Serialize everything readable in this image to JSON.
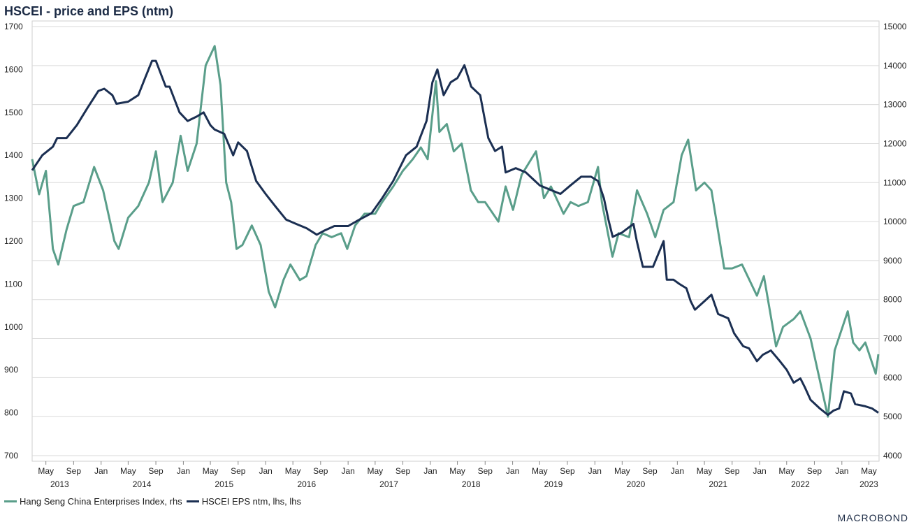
{
  "title": "HSCEI - price and EPS (ntm)",
  "logo": "MACROBOND",
  "colors": {
    "price": "#5a9e8a",
    "eps": "#1b2f52",
    "grid": "#dadada"
  },
  "chart_data": {
    "type": "line",
    "x_range": [
      "2013-03-01",
      "2023-06-15"
    ],
    "left_axis": {
      "ticks": [
        700,
        800,
        900,
        1000,
        1100,
        1200,
        1300,
        1400,
        1500,
        1600,
        1700
      ],
      "range": [
        700,
        1700
      ]
    },
    "right_axis": {
      "ticks": [
        4000,
        5000,
        6000,
        7000,
        8000,
        9000,
        10000,
        11000,
        12000,
        13000,
        14000,
        15000
      ],
      "range": [
        4000,
        15000
      ]
    },
    "x_ticks": [
      {
        "date": "2013-05-01",
        "label": "May"
      },
      {
        "date": "2013-09-01",
        "label": "Sep"
      },
      {
        "date": "2014-01-01",
        "label": "Jan"
      },
      {
        "date": "2014-05-01",
        "label": "May"
      },
      {
        "date": "2014-09-01",
        "label": "Sep"
      },
      {
        "date": "2015-01-01",
        "label": "Jan"
      },
      {
        "date": "2015-05-01",
        "label": "May"
      },
      {
        "date": "2015-09-01",
        "label": "Sep"
      },
      {
        "date": "2016-01-01",
        "label": "Jan"
      },
      {
        "date": "2016-05-01",
        "label": "May"
      },
      {
        "date": "2016-09-01",
        "label": "Sep"
      },
      {
        "date": "2017-01-01",
        "label": "Jan"
      },
      {
        "date": "2017-05-01",
        "label": "May"
      },
      {
        "date": "2017-09-01",
        "label": "Sep"
      },
      {
        "date": "2018-01-01",
        "label": "Jan"
      },
      {
        "date": "2018-05-01",
        "label": "May"
      },
      {
        "date": "2018-09-01",
        "label": "Sep"
      },
      {
        "date": "2019-01-01",
        "label": "Jan"
      },
      {
        "date": "2019-05-01",
        "label": "May"
      },
      {
        "date": "2019-09-01",
        "label": "Sep"
      },
      {
        "date": "2020-01-01",
        "label": "Jan"
      },
      {
        "date": "2020-05-01",
        "label": "May"
      },
      {
        "date": "2020-09-01",
        "label": "Sep"
      },
      {
        "date": "2021-01-01",
        "label": "Jan"
      },
      {
        "date": "2021-05-01",
        "label": "May"
      },
      {
        "date": "2021-09-01",
        "label": "Sep"
      },
      {
        "date": "2022-01-01",
        "label": "Jan"
      },
      {
        "date": "2022-05-01",
        "label": "May"
      },
      {
        "date": "2022-09-01",
        "label": "Sep"
      },
      {
        "date": "2023-01-01",
        "label": "Jan"
      },
      {
        "date": "2023-05-01",
        "label": "May"
      }
    ],
    "year_labels": [
      {
        "date": "2013-07-01",
        "label": "2013"
      },
      {
        "date": "2014-07-01",
        "label": "2014"
      },
      {
        "date": "2015-07-01",
        "label": "2015"
      },
      {
        "date": "2016-07-01",
        "label": "2016"
      },
      {
        "date": "2017-07-01",
        "label": "2017"
      },
      {
        "date": "2018-07-01",
        "label": "2018"
      },
      {
        "date": "2019-07-01",
        "label": "2019"
      },
      {
        "date": "2020-07-01",
        "label": "2020"
      },
      {
        "date": "2021-07-01",
        "label": "2021"
      },
      {
        "date": "2022-07-01",
        "label": "2022"
      },
      {
        "date": "2023-05-01",
        "label": "2023"
      }
    ],
    "series": [
      {
        "name": "Hang Seng China Enterprises Index, rhs",
        "axis": "right",
        "points": [
          [
            "2013-03-01",
            11600
          ],
          [
            "2013-04-01",
            10700
          ],
          [
            "2013-05-01",
            11300
          ],
          [
            "2013-06-01",
            9300
          ],
          [
            "2013-06-25",
            8900
          ],
          [
            "2013-08-01",
            9800
          ],
          [
            "2013-09-01",
            10400
          ],
          [
            "2013-10-15",
            10500
          ],
          [
            "2013-12-01",
            11400
          ],
          [
            "2014-01-10",
            10800
          ],
          [
            "2014-03-01",
            9500
          ],
          [
            "2014-03-20",
            9300
          ],
          [
            "2014-05-01",
            10100
          ],
          [
            "2014-06-15",
            10400
          ],
          [
            "2014-08-01",
            11000
          ],
          [
            "2014-09-01",
            11800
          ],
          [
            "2014-10-01",
            10500
          ],
          [
            "2014-11-15",
            11000
          ],
          [
            "2014-12-20",
            12200
          ],
          [
            "2015-01-20",
            11300
          ],
          [
            "2015-03-01",
            12000
          ],
          [
            "2015-04-10",
            14000
          ],
          [
            "2015-05-20",
            14500
          ],
          [
            "2015-06-15",
            13500
          ],
          [
            "2015-07-10",
            11000
          ],
          [
            "2015-08-01",
            10500
          ],
          [
            "2015-08-25",
            9300
          ],
          [
            "2015-09-20",
            9400
          ],
          [
            "2015-11-01",
            9900
          ],
          [
            "2015-12-10",
            9400
          ],
          [
            "2016-01-15",
            8200
          ],
          [
            "2016-02-12",
            7800
          ],
          [
            "2016-03-20",
            8500
          ],
          [
            "2016-04-20",
            8900
          ],
          [
            "2016-06-01",
            8500
          ],
          [
            "2016-06-30",
            8600
          ],
          [
            "2016-08-10",
            9400
          ],
          [
            "2016-09-10",
            9700
          ],
          [
            "2016-10-20",
            9600
          ],
          [
            "2016-12-01",
            9700
          ],
          [
            "2016-12-28",
            9300
          ],
          [
            "2017-02-01",
            9900
          ],
          [
            "2017-03-15",
            10200
          ],
          [
            "2017-05-01",
            10200
          ],
          [
            "2017-06-01",
            10500
          ],
          [
            "2017-07-20",
            10900
          ],
          [
            "2017-09-01",
            11300
          ],
          [
            "2017-10-15",
            11600
          ],
          [
            "2017-11-20",
            11900
          ],
          [
            "2017-12-20",
            11600
          ],
          [
            "2018-01-26",
            13600
          ],
          [
            "2018-02-10",
            12300
          ],
          [
            "2018-03-15",
            12500
          ],
          [
            "2018-04-15",
            11800
          ],
          [
            "2018-05-20",
            12000
          ],
          [
            "2018-06-30",
            10800
          ],
          [
            "2018-08-01",
            10500
          ],
          [
            "2018-09-01",
            10500
          ],
          [
            "2018-10-30",
            10000
          ],
          [
            "2018-12-01",
            10900
          ],
          [
            "2019-01-03",
            10300
          ],
          [
            "2019-02-10",
            11200
          ],
          [
            "2019-04-15",
            11800
          ],
          [
            "2019-05-20",
            10600
          ],
          [
            "2019-06-20",
            10900
          ],
          [
            "2019-08-15",
            10200
          ],
          [
            "2019-09-15",
            10500
          ],
          [
            "2019-10-20",
            10400
          ],
          [
            "2019-12-01",
            10500
          ],
          [
            "2020-01-15",
            11400
          ],
          [
            "2020-02-01",
            10500
          ],
          [
            "2020-03-19",
            9100
          ],
          [
            "2020-04-15",
            9700
          ],
          [
            "2020-06-01",
            9600
          ],
          [
            "2020-07-06",
            10800
          ],
          [
            "2020-08-20",
            10200
          ],
          [
            "2020-09-25",
            9600
          ],
          [
            "2020-11-01",
            10300
          ],
          [
            "2020-12-15",
            10500
          ],
          [
            "2021-01-20",
            11700
          ],
          [
            "2021-02-18",
            12100
          ],
          [
            "2021-03-25",
            10800
          ],
          [
            "2021-05-01",
            11000
          ],
          [
            "2021-06-01",
            10800
          ],
          [
            "2021-07-28",
            8800
          ],
          [
            "2021-09-01",
            8800
          ],
          [
            "2021-10-15",
            8900
          ],
          [
            "2021-12-20",
            8100
          ],
          [
            "2022-01-20",
            8600
          ],
          [
            "2022-03-15",
            6800
          ],
          [
            "2022-04-15",
            7300
          ],
          [
            "2022-06-01",
            7500
          ],
          [
            "2022-07-01",
            7700
          ],
          [
            "2022-08-15",
            7000
          ],
          [
            "2022-10-31",
            5000
          ],
          [
            "2022-11-30",
            6700
          ],
          [
            "2023-01-27",
            7700
          ],
          [
            "2023-02-20",
            6900
          ],
          [
            "2023-03-20",
            6700
          ],
          [
            "2023-04-15",
            6900
          ],
          [
            "2023-05-31",
            6100
          ],
          [
            "2023-06-12",
            6600
          ]
        ]
      },
      {
        "name": "HSCEI EPS ntm, lhs, lhs",
        "axis": "left",
        "points": [
          [
            "2013-03-01",
            1365
          ],
          [
            "2013-04-15",
            1400
          ],
          [
            "2013-06-01",
            1420
          ],
          [
            "2013-06-20",
            1440
          ],
          [
            "2013-08-01",
            1440
          ],
          [
            "2013-09-15",
            1470
          ],
          [
            "2013-11-01",
            1510
          ],
          [
            "2013-12-20",
            1550
          ],
          [
            "2014-01-15",
            1555
          ],
          [
            "2014-02-20",
            1540
          ],
          [
            "2014-03-10",
            1520
          ],
          [
            "2014-05-01",
            1525
          ],
          [
            "2014-06-15",
            1540
          ],
          [
            "2014-07-15",
            1580
          ],
          [
            "2014-08-15",
            1620
          ],
          [
            "2014-09-01",
            1620
          ],
          [
            "2014-10-15",
            1560
          ],
          [
            "2014-11-01",
            1560
          ],
          [
            "2014-12-15",
            1500
          ],
          [
            "2015-01-20",
            1480
          ],
          [
            "2015-03-01",
            1490
          ],
          [
            "2015-04-01",
            1500
          ],
          [
            "2015-05-01",
            1470
          ],
          [
            "2015-05-20",
            1460
          ],
          [
            "2015-07-01",
            1450
          ],
          [
            "2015-08-10",
            1400
          ],
          [
            "2015-09-01",
            1430
          ],
          [
            "2015-10-10",
            1410
          ],
          [
            "2015-11-20",
            1340
          ],
          [
            "2016-01-01",
            1310
          ],
          [
            "2016-02-15",
            1280
          ],
          [
            "2016-04-01",
            1250
          ],
          [
            "2016-05-15",
            1240
          ],
          [
            "2016-07-01",
            1230
          ],
          [
            "2016-08-15",
            1215
          ],
          [
            "2016-09-20",
            1225
          ],
          [
            "2016-11-01",
            1235
          ],
          [
            "2017-01-01",
            1235
          ],
          [
            "2017-02-20",
            1250
          ],
          [
            "2017-04-15",
            1265
          ],
          [
            "2017-06-01",
            1300
          ],
          [
            "2017-07-20",
            1340
          ],
          [
            "2017-09-15",
            1400
          ],
          [
            "2017-11-01",
            1420
          ],
          [
            "2017-12-15",
            1480
          ],
          [
            "2018-01-10",
            1570
          ],
          [
            "2018-02-01",
            1600
          ],
          [
            "2018-03-01",
            1540
          ],
          [
            "2018-04-01",
            1570
          ],
          [
            "2018-05-01",
            1580
          ],
          [
            "2018-06-01",
            1610
          ],
          [
            "2018-07-01",
            1560
          ],
          [
            "2018-08-10",
            1540
          ],
          [
            "2018-09-15",
            1440
          ],
          [
            "2018-10-15",
            1410
          ],
          [
            "2018-11-15",
            1420
          ],
          [
            "2018-12-01",
            1360
          ],
          [
            "2019-01-15",
            1370
          ],
          [
            "2019-03-01",
            1360
          ],
          [
            "2019-05-01",
            1330
          ],
          [
            "2019-06-15",
            1320
          ],
          [
            "2019-08-01",
            1310
          ],
          [
            "2019-09-15",
            1330
          ],
          [
            "2019-11-01",
            1350
          ],
          [
            "2019-12-15",
            1350
          ],
          [
            "2020-01-15",
            1340
          ],
          [
            "2020-02-10",
            1300
          ],
          [
            "2020-03-01",
            1250
          ],
          [
            "2020-03-20",
            1210
          ],
          [
            "2020-05-01",
            1220
          ],
          [
            "2020-06-20",
            1240
          ],
          [
            "2020-07-05",
            1200
          ],
          [
            "2020-08-01",
            1140
          ],
          [
            "2020-09-15",
            1140
          ],
          [
            "2020-11-01",
            1200
          ],
          [
            "2020-11-15",
            1110
          ],
          [
            "2020-12-15",
            1110
          ],
          [
            "2021-01-10",
            1100
          ],
          [
            "2021-02-10",
            1090
          ],
          [
            "2021-03-01",
            1060
          ],
          [
            "2021-03-20",
            1040
          ],
          [
            "2021-05-01",
            1060
          ],
          [
            "2021-06-01",
            1075
          ],
          [
            "2021-07-01",
            1030
          ],
          [
            "2021-08-15",
            1020
          ],
          [
            "2021-09-10",
            985
          ],
          [
            "2021-10-20",
            955
          ],
          [
            "2021-11-15",
            950
          ],
          [
            "2021-12-20",
            920
          ],
          [
            "2022-01-15",
            935
          ],
          [
            "2022-02-20",
            945
          ],
          [
            "2022-04-01",
            920
          ],
          [
            "2022-05-01",
            900
          ],
          [
            "2022-06-01",
            870
          ],
          [
            "2022-07-01",
            880
          ],
          [
            "2022-07-20",
            860
          ],
          [
            "2022-08-15",
            830
          ],
          [
            "2022-09-25",
            810
          ],
          [
            "2022-10-31",
            795
          ],
          [
            "2022-11-25",
            805
          ],
          [
            "2022-12-20",
            810
          ],
          [
            "2023-01-10",
            850
          ],
          [
            "2023-02-10",
            845
          ],
          [
            "2023-03-01",
            820
          ],
          [
            "2023-04-15",
            815
          ],
          [
            "2023-05-15",
            810
          ],
          [
            "2023-06-12",
            800
          ]
        ]
      }
    ],
    "legend": {
      "position": "bottom-left"
    }
  }
}
